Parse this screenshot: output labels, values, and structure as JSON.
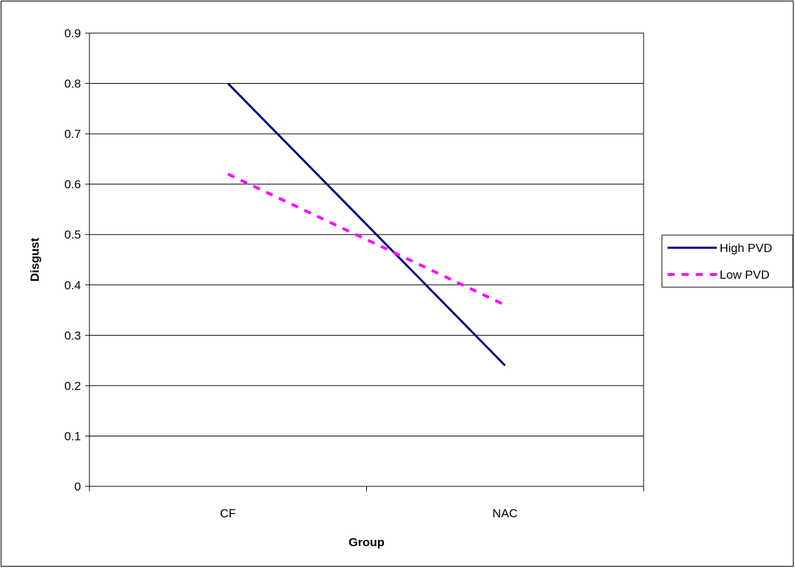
{
  "chart_data": {
    "type": "line",
    "categories": [
      "CF",
      "NAC"
    ],
    "series": [
      {
        "name": "High PVD",
        "values": [
          0.8,
          0.24
        ],
        "color": "#000080",
        "style": "solid"
      },
      {
        "name": "Low PVD",
        "values": [
          0.62,
          0.36
        ],
        "color": "#FF00FF",
        "style": "dashed"
      }
    ],
    "xlabel": "Group",
    "ylabel": "Disgust",
    "ylim": [
      0,
      0.9
    ],
    "yticks": [
      "0",
      "0.1",
      "0.2",
      "0.3",
      "0.4",
      "0.5",
      "0.6",
      "0.7",
      "0.8",
      "0.9"
    ],
    "grid": true,
    "legend_position": "right"
  }
}
